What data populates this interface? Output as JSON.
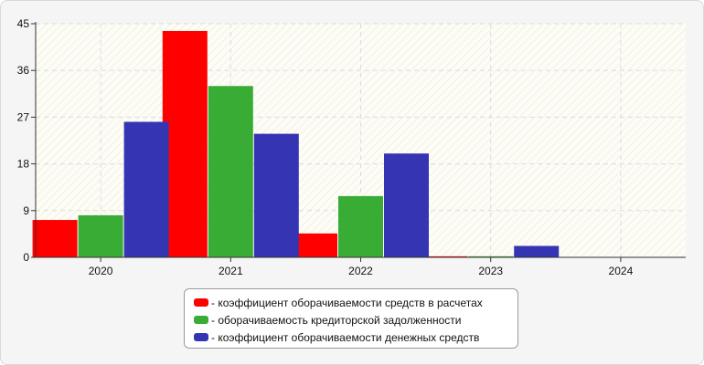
{
  "chart_data": {
    "type": "bar",
    "categories": [
      "2020",
      "2021",
      "2022",
      "2023",
      "2024"
    ],
    "series": [
      {
        "name": "- коэффициент оборачиваемости средств в расчетах",
        "color": "#ff0000",
        "values": [
          7.2,
          43.6,
          4.6,
          0.2,
          null
        ]
      },
      {
        "name": "- оборачиваемость кредиторской задолженности",
        "color": "#38ac34",
        "values": [
          8.1,
          33.0,
          11.8,
          0.2,
          null
        ]
      },
      {
        "name": "- коэффициент оборачиваемости денежных средств",
        "color": "#3535b4",
        "values": [
          26.1,
          23.8,
          20.0,
          2.2,
          null
        ]
      }
    ],
    "ylim": [
      0,
      45
    ],
    "yticks": [
      "0",
      "9",
      "18",
      "27",
      "36",
      "45"
    ],
    "grid": true,
    "legend_position": "bottom-center",
    "title": "",
    "xlabel": "",
    "ylabel": ""
  }
}
